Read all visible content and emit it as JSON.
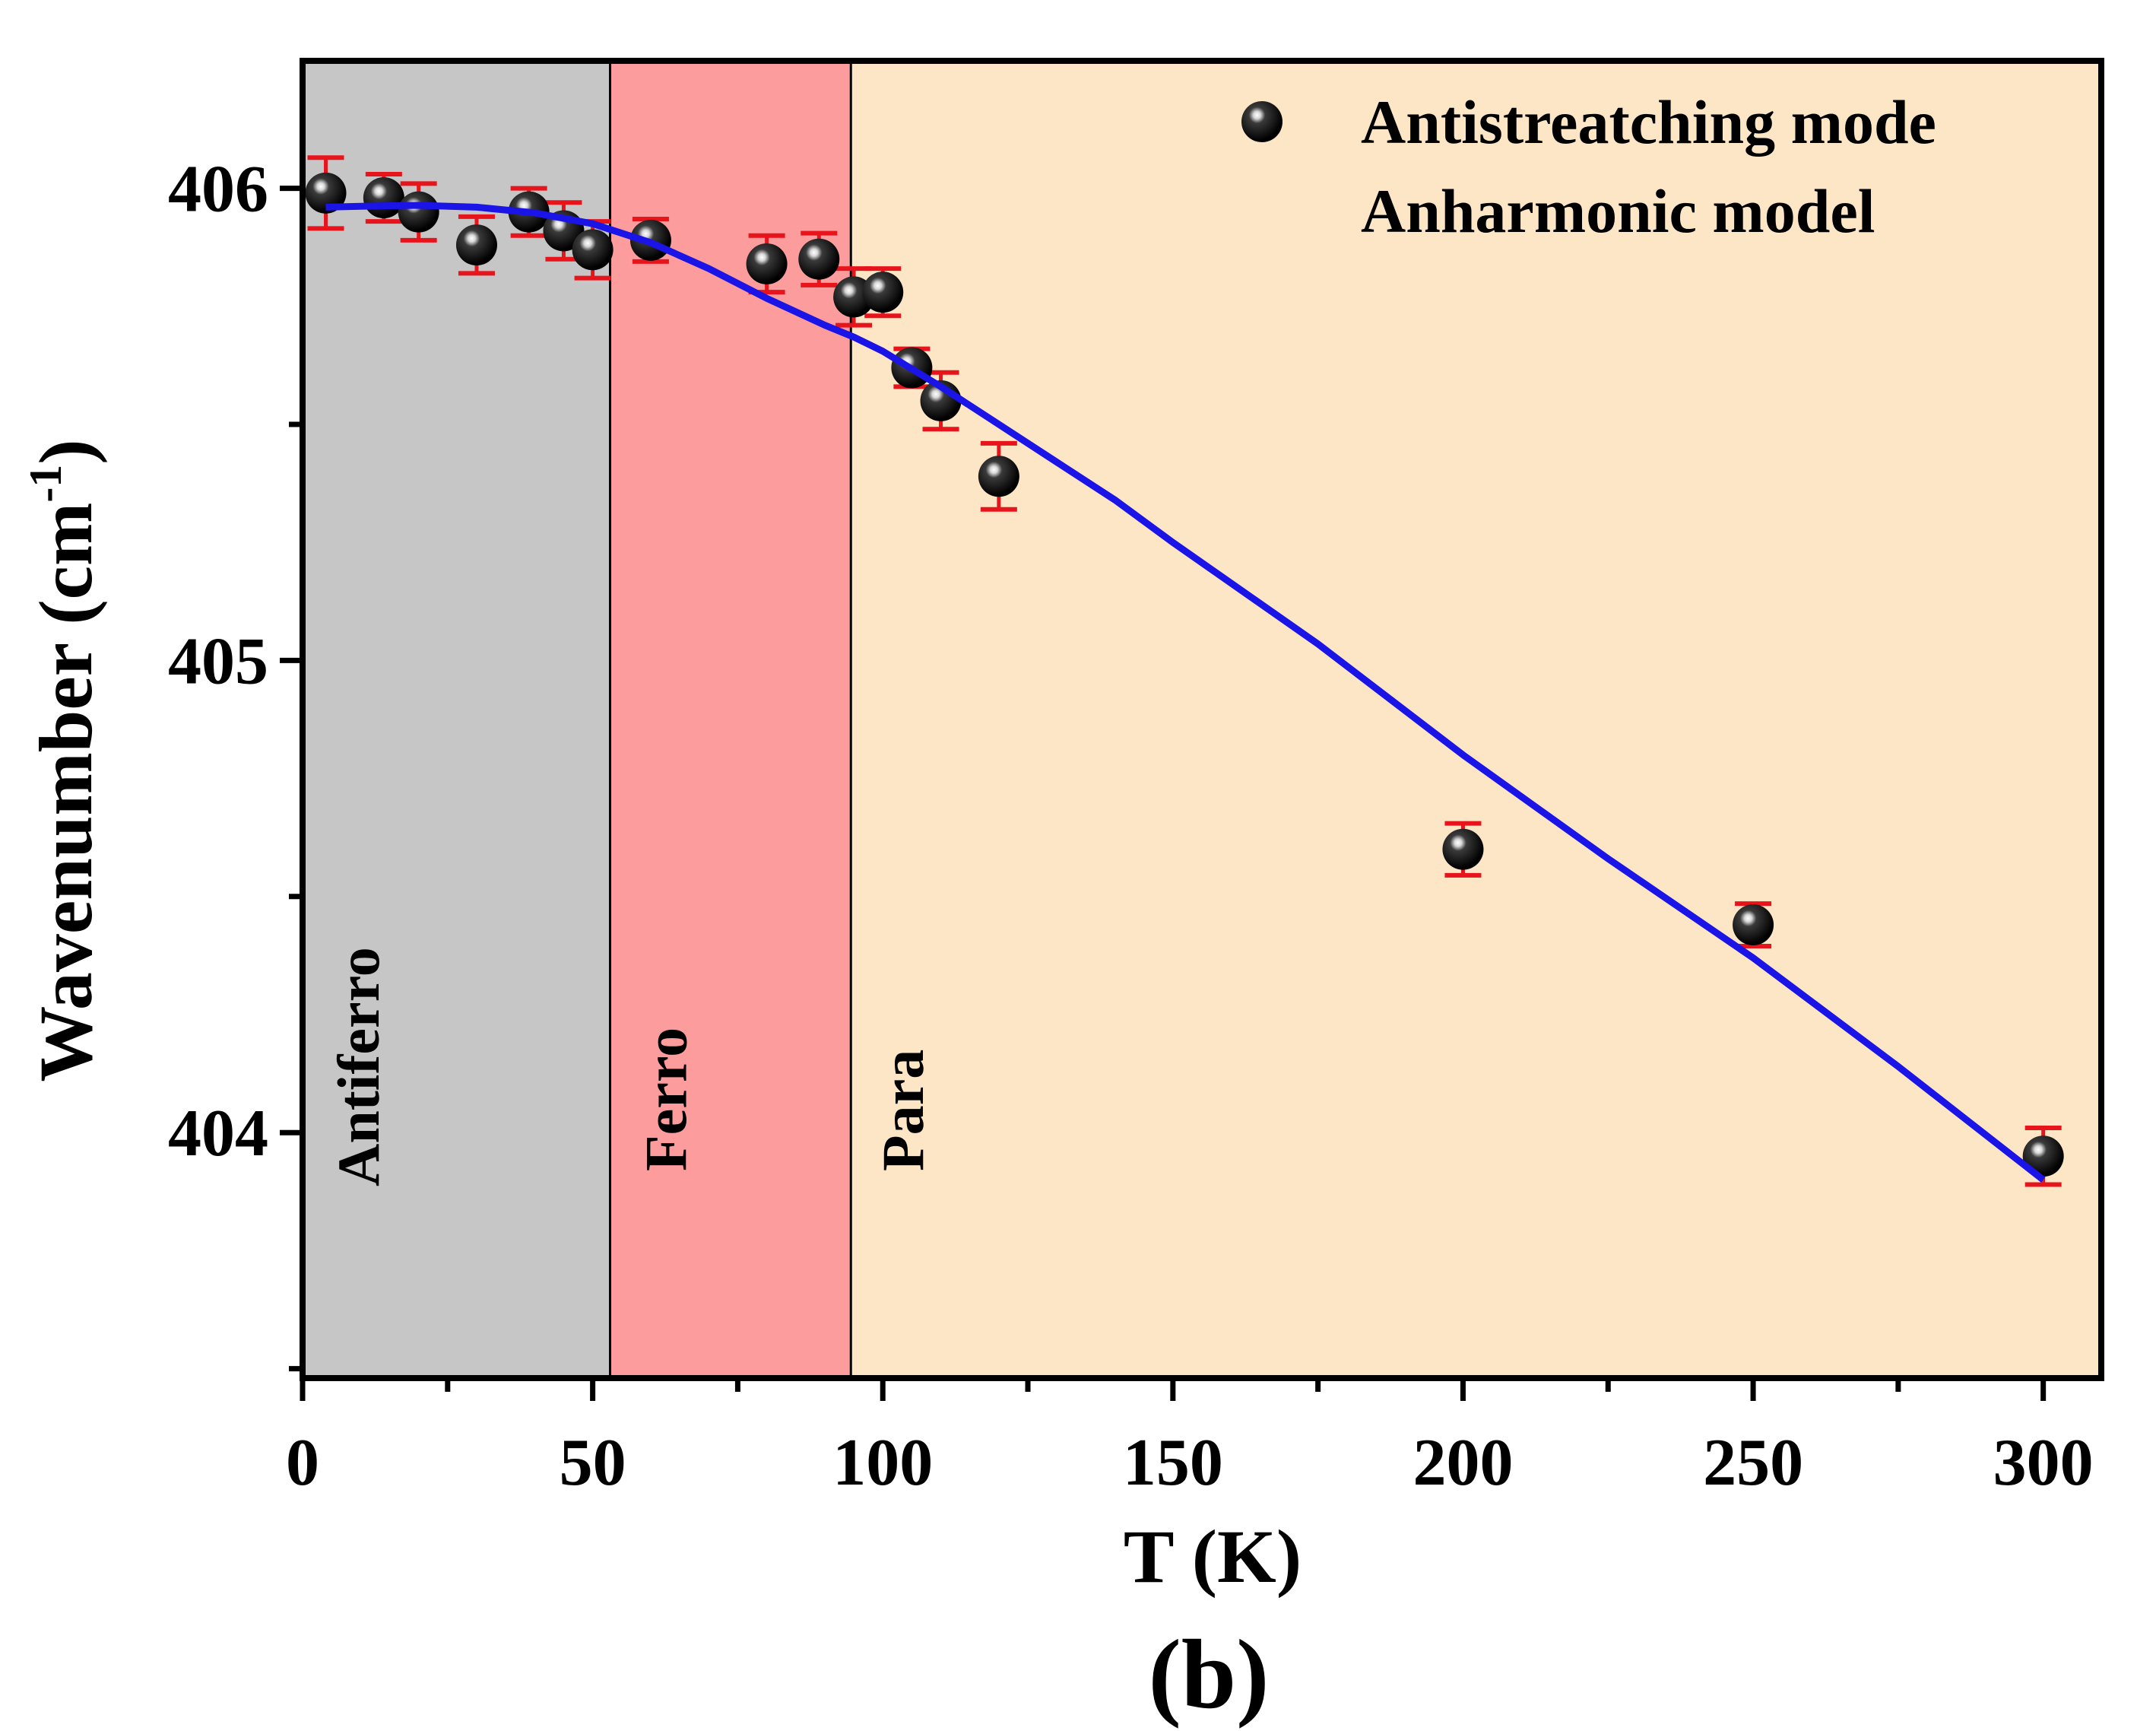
{
  "chart_data": {
    "type": "scatter",
    "title": "",
    "xlabel": "T (K)",
    "ylabel_main": "Wavenumber (cm",
    "ylabel_sup": "-1",
    "ylabel_close": ")",
    "xlim": [
      0,
      310
    ],
    "ylim": [
      403.48,
      406.27
    ],
    "x_ticks": [
      0,
      50,
      100,
      150,
      200,
      250,
      300
    ],
    "y_ticks": [
      404,
      405,
      406
    ],
    "grid": false,
    "legend_position": "top-right",
    "regions": [
      {
        "label": "Antiferro",
        "x_start": 0,
        "x_end": 53,
        "color": "#c6c6c6"
      },
      {
        "label": "Ferro",
        "x_start": 53,
        "x_end": 94.5,
        "color": "#fc9c9c"
      },
      {
        "label": "Para",
        "x_start": 94.5,
        "x_end": 310,
        "color": "#fde6c6"
      }
    ],
    "series": [
      {
        "name": "Antistreatching mode",
        "kind": "scatter-errorbar",
        "marker_color": "#000000",
        "error_color": "#e8141c",
        "x": [
          4,
          14,
          20,
          30,
          39,
          45,
          50,
          60,
          80,
          89,
          95,
          100,
          105,
          110,
          120,
          200,
          250,
          300
        ],
        "y": [
          405.99,
          405.98,
          405.95,
          405.88,
          405.95,
          405.91,
          405.87,
          405.89,
          405.84,
          405.85,
          405.77,
          405.78,
          405.62,
          405.55,
          405.39,
          404.6,
          404.44,
          403.95
        ],
        "err": [
          0.075,
          0.05,
          0.06,
          0.06,
          0.05,
          0.06,
          0.06,
          0.045,
          0.06,
          0.055,
          0.06,
          0.05,
          0.04,
          0.06,
          0.07,
          0.055,
          0.045,
          0.06
        ]
      },
      {
        "name": "Anharmonic model",
        "kind": "line",
        "color": "#1a14e6",
        "x": [
          4,
          10,
          20,
          30,
          40,
          50,
          60,
          70,
          80,
          90,
          95,
          100,
          110,
          120,
          130,
          140,
          150,
          175,
          200,
          225,
          250,
          275,
          300
        ],
        "y": [
          405.96,
          405.962,
          405.964,
          405.96,
          405.948,
          405.925,
          405.885,
          405.83,
          405.767,
          405.71,
          405.685,
          405.655,
          405.58,
          405.5,
          405.42,
          405.34,
          405.25,
          405.035,
          404.8,
          404.58,
          404.37,
          404.14,
          403.9
        ]
      }
    ]
  },
  "caption": "(b)"
}
